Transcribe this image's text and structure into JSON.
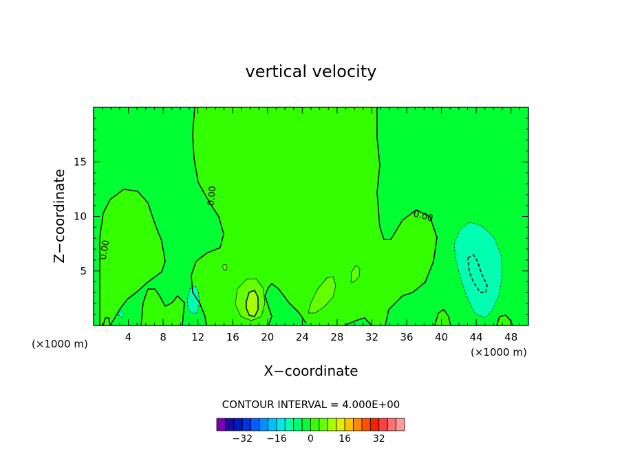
{
  "chart_data": {
    "type": "contour",
    "title": "vertical velocity",
    "xlabel": "X−coordinate",
    "ylabel": "Z−coordinate",
    "x_unit_left": "(×1000 m)",
    "x_unit_right": "(×1000 m)",
    "xlim": [
      0,
      50
    ],
    "ylim": [
      0,
      20
    ],
    "x_ticks": [
      4,
      8,
      12,
      16,
      20,
      24,
      28,
      32,
      36,
      40,
      44,
      48
    ],
    "y_ticks": [
      5,
      10,
      15
    ],
    "x_tick_labels": [
      "4",
      "8",
      "12",
      "16",
      "20",
      "24",
      "28",
      "32",
      "36",
      "40",
      "44",
      "48"
    ],
    "y_tick_labels": [
      "5",
      "10",
      "15"
    ],
    "contour_interval_text": "CONTOUR INTERVAL = 4.000E+00",
    "zero_contour_label": "0.00",
    "background_color": "#00ff33",
    "colorbar": {
      "levels": [
        -36,
        -32,
        -28,
        -24,
        -20,
        -16,
        -12,
        -8,
        -4,
        0,
        4,
        8,
        12,
        16,
        20,
        24,
        28,
        32,
        36
      ],
      "colors": [
        "#7b00b4",
        "#1a0c9a",
        "#0018c0",
        "#0030e8",
        "#0060ff",
        "#0090ff",
        "#00c0ff",
        "#00e8e8",
        "#00ffb0",
        "#00ff66",
        "#00ff33",
        "#33ff00",
        "#66ff00",
        "#a8ff00",
        "#e0f000",
        "#ffc000",
        "#ff8c00",
        "#ff5000",
        "#ff1e00",
        "#ff4040",
        "#ff7070",
        "#ff9a9a"
      ],
      "tick_values": [
        -32,
        -16,
        0,
        16,
        32
      ],
      "tick_labels": [
        "−32",
        "−16",
        "0",
        "16",
        "32"
      ]
    },
    "features": [
      {
        "type": "updraft",
        "x": 18.5,
        "z": 2.5,
        "max_value": 8
      },
      {
        "type": "updraft",
        "x": 26.5,
        "z": 2.8,
        "max_value": 4
      },
      {
        "type": "updraft",
        "x": 30.0,
        "z": 4.8,
        "max_value": 4
      },
      {
        "type": "downdraft",
        "x": 44.2,
        "z": 5.0,
        "min_value": -8
      },
      {
        "type": "downdraft",
        "x": 11.3,
        "z": 2.5,
        "min_value": -4
      }
    ]
  }
}
